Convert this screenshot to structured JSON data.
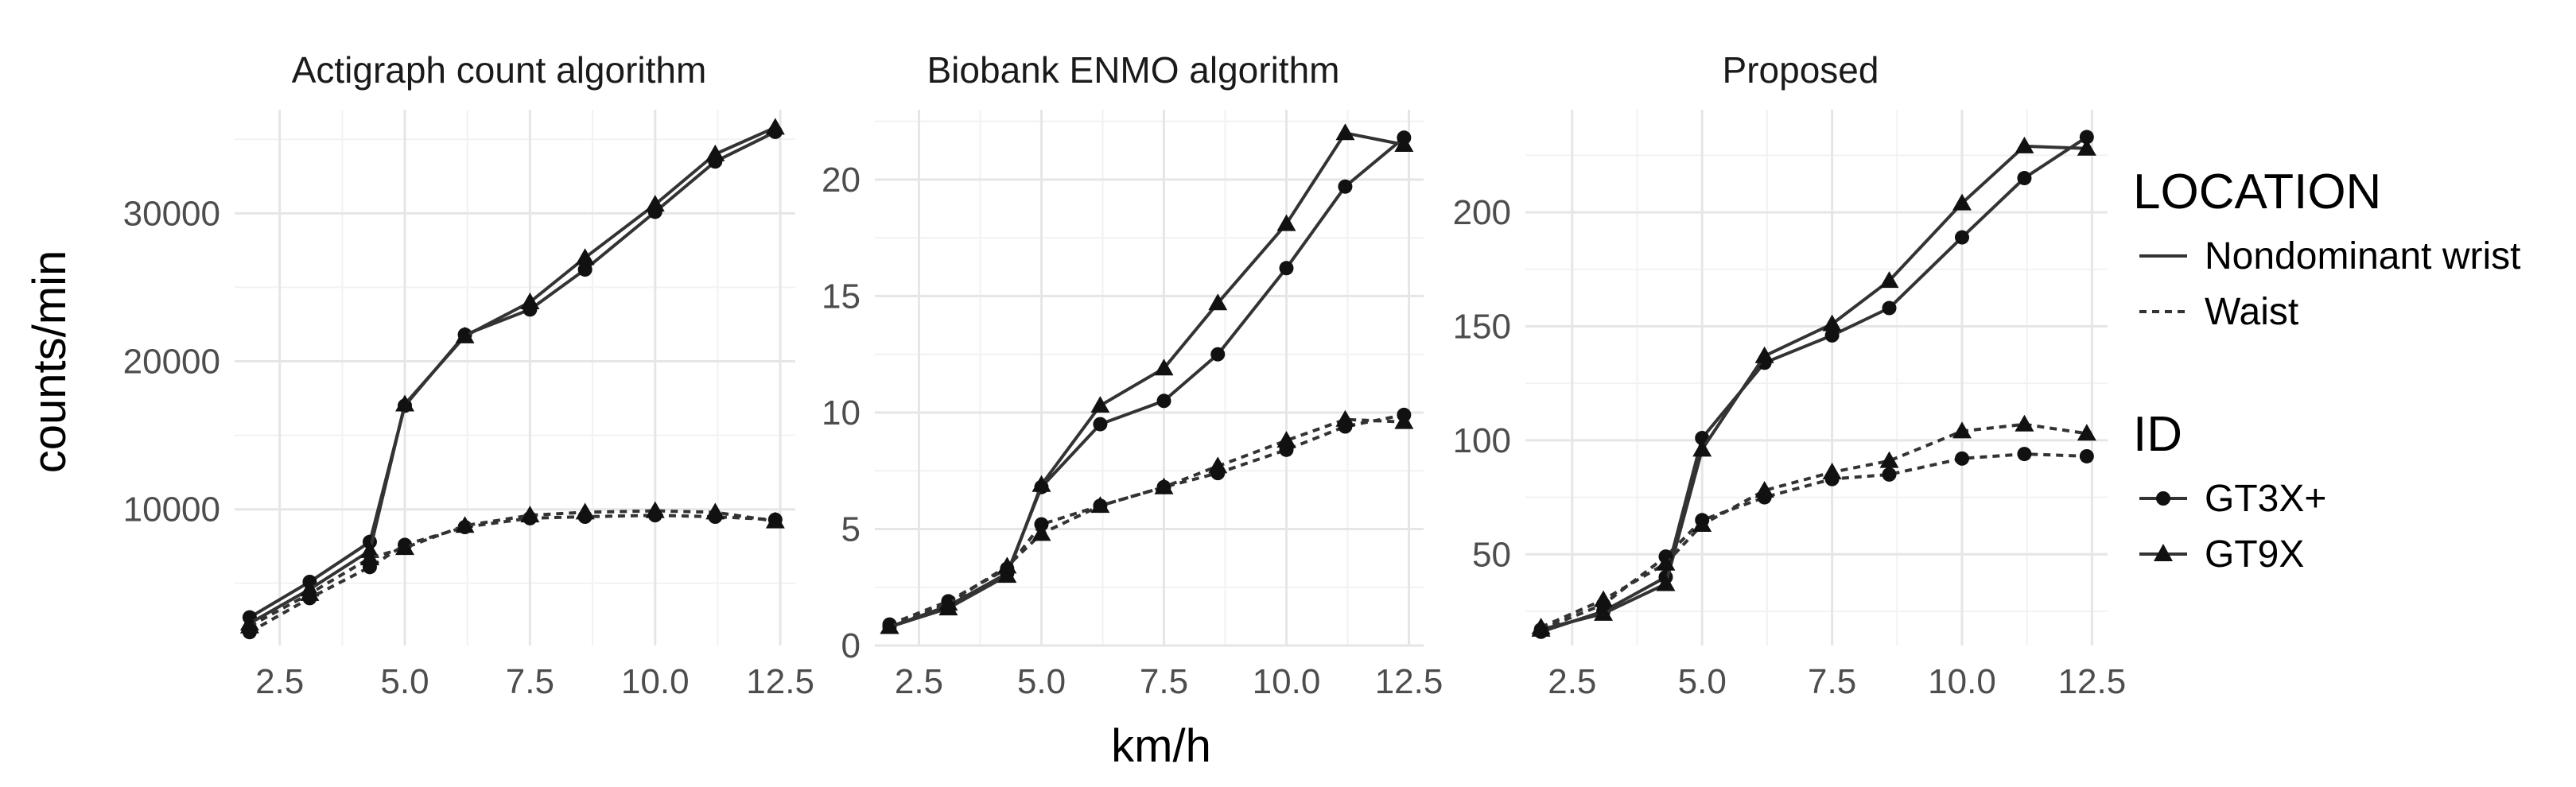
{
  "chart_data": {
    "type": "line",
    "ylabel": "counts/min",
    "xlabel": "km/h",
    "colors": {
      "line": "#333333",
      "grid": "#e6e6e6",
      "minor_grid": "#f2f2f2",
      "background": "#ffffff"
    },
    "grid": true,
    "legend_position": "right",
    "legends": [
      {
        "title": "LOCATION",
        "kind": "linetype",
        "entries": [
          {
            "label": "Nondominant wrist",
            "dash": "solid"
          },
          {
            "label": "Waist",
            "dash": "dashed"
          }
        ]
      },
      {
        "title": "ID",
        "kind": "shape",
        "entries": [
          {
            "label": "GT3X+",
            "shape": "circle"
          },
          {
            "label": "GT9X",
            "shape": "triangle"
          }
        ]
      }
    ],
    "x": [
      1.9,
      3.1,
      4.3,
      5.0,
      6.2,
      7.5,
      8.6,
      10.0,
      11.2,
      12.4
    ],
    "panels": [
      {
        "title": "Actigraph count algorithm",
        "xlim": [
          1.6,
          12.8
        ],
        "ylim": [
          800,
          37000
        ],
        "xticks": [
          "2.5",
          "5.0",
          "7.5",
          "10.0",
          "12.5"
        ],
        "xtick_values": [
          2.5,
          5.0,
          7.5,
          10.0,
          12.5
        ],
        "yticks": [
          "10000",
          "20000",
          "30000"
        ],
        "ytick_values": [
          10000,
          20000,
          30000
        ],
        "series": [
          {
            "name": "Nondominant wrist / GT3X+",
            "location": "Nondominant wrist",
            "id": "GT3X+",
            "values": [
              2700,
              5100,
              7800,
              17000,
              21800,
              23500,
              26200,
              30100,
              33500,
              35500
            ]
          },
          {
            "name": "Nondominant wrist / GT9X",
            "location": "Nondominant wrist",
            "id": "GT9X",
            "values": [
              2300,
              4600,
              7200,
              17100,
              21700,
              24000,
              27000,
              30600,
              34000,
              35800
            ]
          },
          {
            "name": "Waist / GT3X+",
            "location": "Waist",
            "id": "GT3X+",
            "values": [
              1700,
              4000,
              6100,
              7600,
              8800,
              9400,
              9500,
              9600,
              9500,
              9300
            ]
          },
          {
            "name": "Waist / GT9X",
            "location": "Waist",
            "id": "GT9X",
            "values": [
              2100,
              4300,
              6700,
              7400,
              8900,
              9600,
              9800,
              9900,
              9800,
              9200
            ]
          }
        ]
      },
      {
        "title": "Biobank ENMO algorithm",
        "xlim": [
          1.6,
          12.8
        ],
        "ylim": [
          0,
          23
        ],
        "xticks": [
          "2.5",
          "5.0",
          "7.5",
          "10.0",
          "12.5"
        ],
        "xtick_values": [
          2.5,
          5.0,
          7.5,
          10.0,
          12.5
        ],
        "yticks": [
          "0",
          "5",
          "10",
          "15",
          "20"
        ],
        "ytick_values": [
          0,
          5,
          10,
          15,
          20
        ],
        "series": [
          {
            "name": "Nondominant wrist / GT3X+",
            "location": "Nondominant wrist",
            "id": "GT3X+",
            "values": [
              0.8,
              1.7,
              3.1,
              6.8,
              9.5,
              10.5,
              12.5,
              16.2,
              19.7,
              21.8
            ]
          },
          {
            "name": "Nondominant wrist / GT9X",
            "location": "Nondominant wrist",
            "id": "GT9X",
            "values": [
              0.8,
              1.6,
              3.0,
              6.9,
              10.3,
              11.9,
              14.7,
              18.1,
              22.0,
              21.5
            ]
          },
          {
            "name": "Waist / GT3X+",
            "location": "Waist",
            "id": "GT3X+",
            "values": [
              0.9,
              1.9,
              3.3,
              5.2,
              6.0,
              6.8,
              7.4,
              8.4,
              9.4,
              9.9
            ]
          },
          {
            "name": "Waist / GT9X",
            "location": "Waist",
            "id": "GT9X",
            "values": [
              0.8,
              1.8,
              3.4,
              4.8,
              6.0,
              6.8,
              7.7,
              8.8,
              9.7,
              9.6
            ]
          }
        ]
      },
      {
        "title": "Proposed",
        "xlim": [
          1.6,
          12.8
        ],
        "ylim": [
          10,
          245
        ],
        "xticks": [
          "2.5",
          "5.0",
          "7.5",
          "10.0",
          "12.5"
        ],
        "xtick_values": [
          2.5,
          5.0,
          7.5,
          10.0,
          12.5
        ],
        "yticks": [
          "50",
          "100",
          "150",
          "200"
        ],
        "ytick_values": [
          50,
          100,
          150,
          200
        ],
        "series": [
          {
            "name": "Nondominant wrist / GT3X+",
            "location": "Nondominant wrist",
            "id": "GT3X+",
            "values": [
              16,
              25,
              40,
              101,
              134,
              146,
              158,
              189,
              215,
              233
            ]
          },
          {
            "name": "Nondominant wrist / GT9X",
            "location": "Nondominant wrist",
            "id": "GT9X",
            "values": [
              17,
              24,
              37,
              96,
              137,
              151,
              170,
              204,
              229,
              228
            ]
          },
          {
            "name": "Waist / GT3X+",
            "location": "Waist",
            "id": "GT3X+",
            "values": [
              17,
              28,
              49,
              65,
              75,
              83,
              85,
              92,
              94,
              93
            ]
          },
          {
            "name": "Waist / GT9X",
            "location": "Waist",
            "id": "GT9X",
            "values": [
              18,
              30,
              46,
              63,
              78,
              86,
              91,
              104,
              107,
              103
            ]
          }
        ]
      }
    ]
  }
}
